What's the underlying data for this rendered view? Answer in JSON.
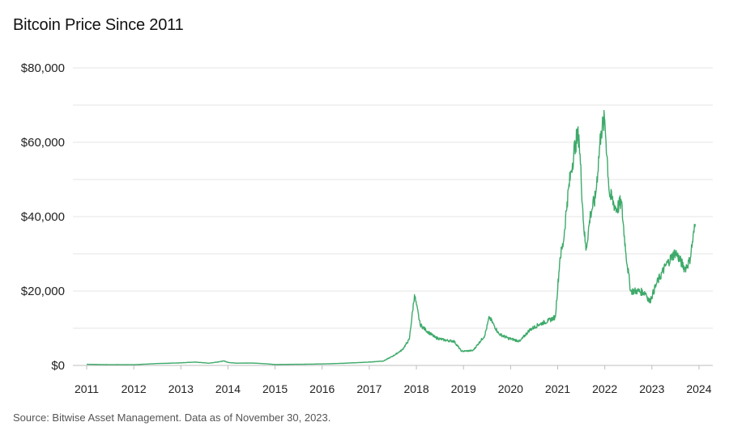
{
  "chart_data": {
    "type": "line",
    "title": "Bitcoin Price Since 2011",
    "xlabel": "",
    "ylabel": "",
    "source": "Source:  Bitwise Asset Management. Data as of November 30, 2023.",
    "x_ticks": [
      "2011",
      "2012",
      "2013",
      "2014",
      "2015",
      "2016",
      "2017",
      "2018",
      "2019",
      "2020",
      "2021",
      "2022",
      "2023",
      "2024"
    ],
    "y_ticks": [
      "$0",
      "$20,000",
      "$40,000",
      "$60,000",
      "$80,000"
    ],
    "y_tick_values": [
      0,
      20000,
      40000,
      60000,
      80000
    ],
    "xlim": [
      2011.0,
      2024.2
    ],
    "ylim": [
      0,
      80000
    ],
    "grid": "horizontal",
    "line_color": "#3eaa6a",
    "series": [
      {
        "name": "",
        "x": [
          2011.0,
          2011.5,
          2012.0,
          2012.5,
          2013.0,
          2013.3,
          2013.6,
          2013.92,
          2014.0,
          2014.2,
          2014.5,
          2014.8,
          2015.0,
          2015.5,
          2016.0,
          2016.5,
          2017.0,
          2017.3,
          2017.5,
          2017.7,
          2017.85,
          2017.96,
          2018.08,
          2018.2,
          2018.4,
          2018.6,
          2018.8,
          2018.96,
          2019.2,
          2019.45,
          2019.55,
          2019.75,
          2019.95,
          2020.2,
          2020.4,
          2020.6,
          2020.8,
          2020.95,
          2021.05,
          2021.12,
          2021.2,
          2021.28,
          2021.38,
          2021.45,
          2021.55,
          2021.6,
          2021.7,
          2021.8,
          2021.92,
          2022.0,
          2022.1,
          2022.25,
          2022.35,
          2022.45,
          2022.55,
          2022.7,
          2022.87,
          2022.95,
          2023.1,
          2023.3,
          2023.5,
          2023.7,
          2023.8,
          2023.92
        ],
        "y": [
          300,
          200,
          200,
          500,
          700,
          900,
          600,
          1200,
          800,
          600,
          650,
          450,
          250,
          300,
          400,
          600,
          900,
          1200,
          2500,
          4200,
          7000,
          19000,
          11000,
          9500,
          7500,
          6800,
          6500,
          3800,
          4000,
          8000,
          13000,
          8500,
          7300,
          6500,
          9500,
          11000,
          12000,
          13000,
          29000,
          33000,
          44000,
          52000,
          60000,
          62000,
          38000,
          31000,
          41000,
          45000,
          63000,
          66000,
          46000,
          42000,
          44000,
          30000,
          20000,
          20000,
          19500,
          17000,
          22000,
          27000,
          30500,
          26000,
          28000,
          38000
        ]
      }
    ]
  }
}
